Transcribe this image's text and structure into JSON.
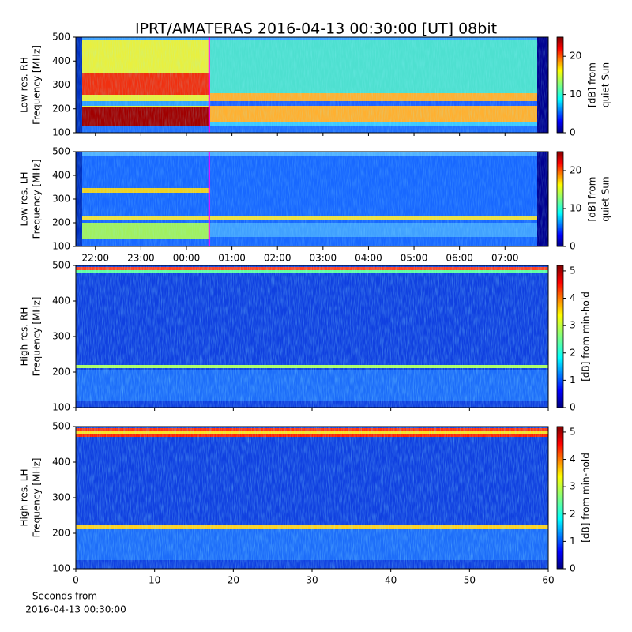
{
  "title": "IPRT/AMATERAS 2016-04-13 00:30:00 [UT]   08bit",
  "chart_data": [
    {
      "type": "heatmap",
      "ylabel": [
        "Low res. RH",
        "Frequency [MHz]"
      ],
      "xlim": [
        21.57,
        31.95
      ],
      "xticks": [
        22,
        23,
        24,
        25,
        26,
        27,
        28,
        29,
        30,
        31
      ],
      "xtick_labels": false,
      "ylim": [
        100,
        500
      ],
      "yticks": [
        100,
        200,
        300,
        400,
        500
      ],
      "marker": {
        "x": 24.5,
        "color": "#ff00ff"
      },
      "colorbar": {
        "label": [
          "[dB] from",
          "quiet Sun"
        ],
        "lim": [
          0,
          25
        ],
        "ticks": [
          0,
          10,
          20
        ]
      }
    },
    {
      "type": "heatmap",
      "ylabel": [
        "Low res. LH",
        "Frequency [MHz]"
      ],
      "xlim": [
        21.57,
        31.95
      ],
      "xticks": [
        {
          "value": 22,
          "label": "22:00"
        },
        {
          "value": 23,
          "label": "23:00"
        },
        {
          "value": 24,
          "label": "00:00"
        },
        {
          "value": 25,
          "label": "01:00"
        },
        {
          "value": 26,
          "label": "02:00"
        },
        {
          "value": 27,
          "label": "03:00"
        },
        {
          "value": 28,
          "label": "04:00"
        },
        {
          "value": 29,
          "label": "05:00"
        },
        {
          "value": 30,
          "label": "06:00"
        },
        {
          "value": 31,
          "label": "07:00"
        }
      ],
      "xtick_labels": true,
      "ylim": [
        100,
        500
      ],
      "yticks": [
        100,
        200,
        300,
        400,
        500
      ],
      "marker": {
        "x": 24.5,
        "color": "#ff00ff"
      },
      "colorbar": {
        "label": [
          "[dB] from",
          "quiet Sun"
        ],
        "lim": [
          0,
          25
        ],
        "ticks": [
          0,
          10,
          20
        ]
      }
    },
    {
      "type": "heatmap",
      "ylabel": [
        "High res. RH",
        "Frequency [MHz]"
      ],
      "xlim": [
        0,
        60
      ],
      "xticks": [
        0,
        10,
        20,
        30,
        40,
        50,
        60
      ],
      "xtick_labels": false,
      "ylim": [
        100,
        500
      ],
      "yticks": [
        100,
        200,
        300,
        400,
        500
      ],
      "colorbar": {
        "label": [
          "[dB] from min-hold"
        ],
        "lim": [
          0,
          5.2
        ],
        "ticks": [
          0,
          1,
          2,
          3,
          4,
          5
        ]
      }
    },
    {
      "type": "heatmap",
      "ylabel": [
        "High res. LH",
        "Frequency [MHz]"
      ],
      "xlim": [
        0,
        60
      ],
      "xticks": [
        0,
        10,
        20,
        30,
        40,
        50,
        60
      ],
      "xtick_labels": true,
      "xlabel": [
        "Seconds from",
        "2016-04-13 00:30:00"
      ],
      "ylim": [
        100,
        500
      ],
      "yticks": [
        100,
        200,
        300,
        400,
        500
      ],
      "colorbar": {
        "label": [
          "[dB] from min-hold"
        ],
        "lim": [
          0,
          5.2
        ],
        "ticks": [
          0,
          1,
          2,
          3,
          4,
          5
        ]
      }
    }
  ]
}
